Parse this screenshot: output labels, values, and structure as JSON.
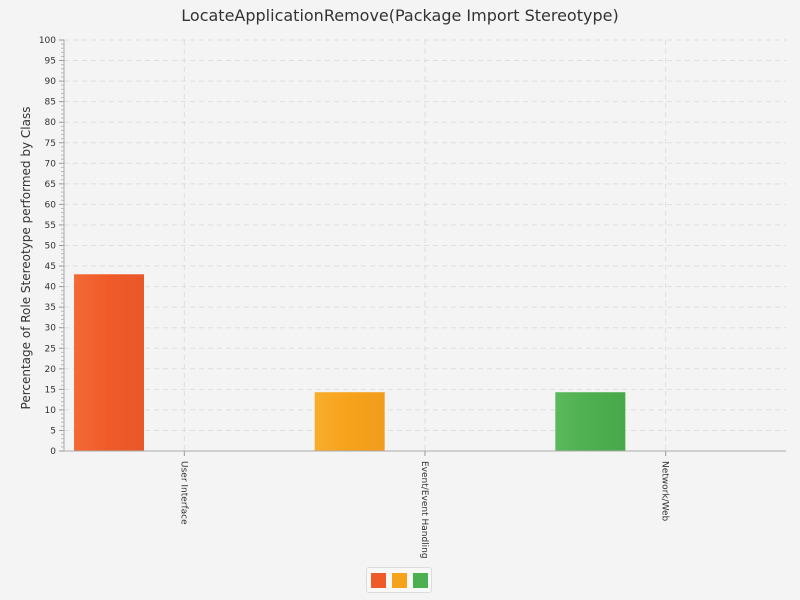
{
  "chart_data": {
    "type": "bar",
    "title": "LocateApplicationRemove(Package Import Stereotype)",
    "xlabel": "",
    "ylabel": "Percentage of Role Stereotype performed by Class",
    "categories": [
      "User Interface",
      "Event/Event Handling",
      "Network/Web"
    ],
    "values": [
      43.0,
      14.3,
      14.3
    ],
    "colors": [
      "#f05a28",
      "#f7a21b",
      "#4caf50"
    ],
    "ylim": [
      0,
      100
    ],
    "ytick_step": 5,
    "grid": true,
    "legend": "bottom-center"
  }
}
